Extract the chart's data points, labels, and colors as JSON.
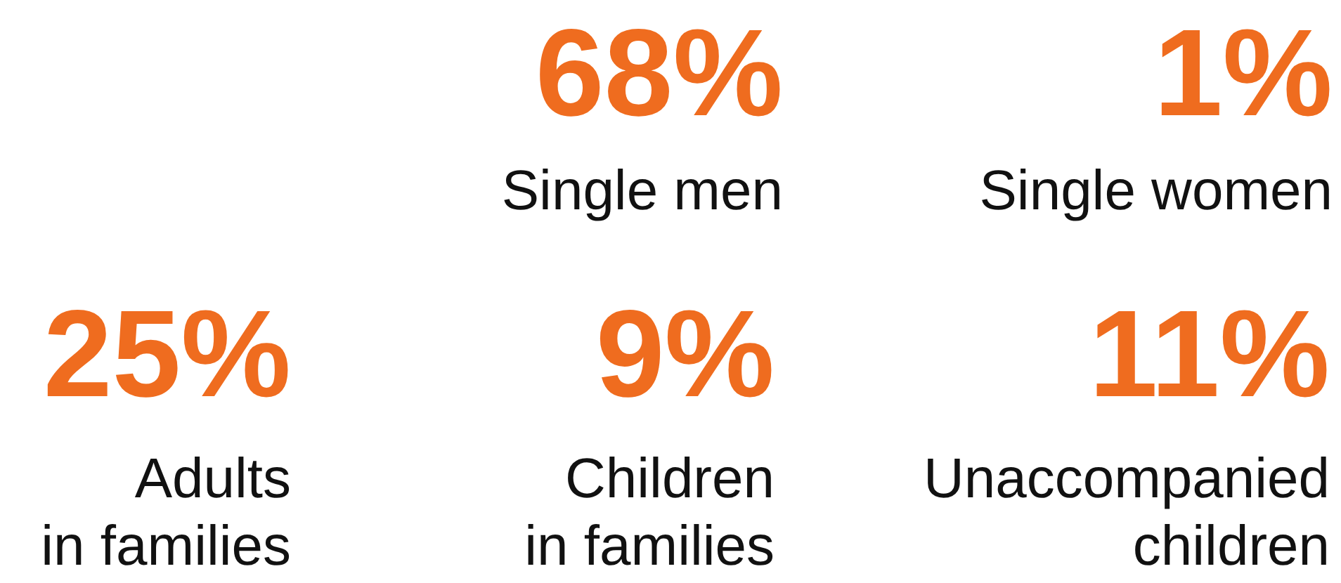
{
  "chart_data": {
    "type": "other",
    "categories": [
      "Single men",
      "Single women",
      "Adults\nin families",
      "Children\nin families",
      "Unaccompanied\nchildren"
    ],
    "values": [
      68,
      1,
      25,
      9,
      11
    ],
    "value_labels": [
      "68%",
      "1%",
      "25%",
      "9%",
      "11%"
    ],
    "colors": [
      "#ef6c1f",
      "#ef6c1f",
      "#ef6c1f",
      "#ef6c1f",
      "#ef6c1f"
    ]
  }
}
